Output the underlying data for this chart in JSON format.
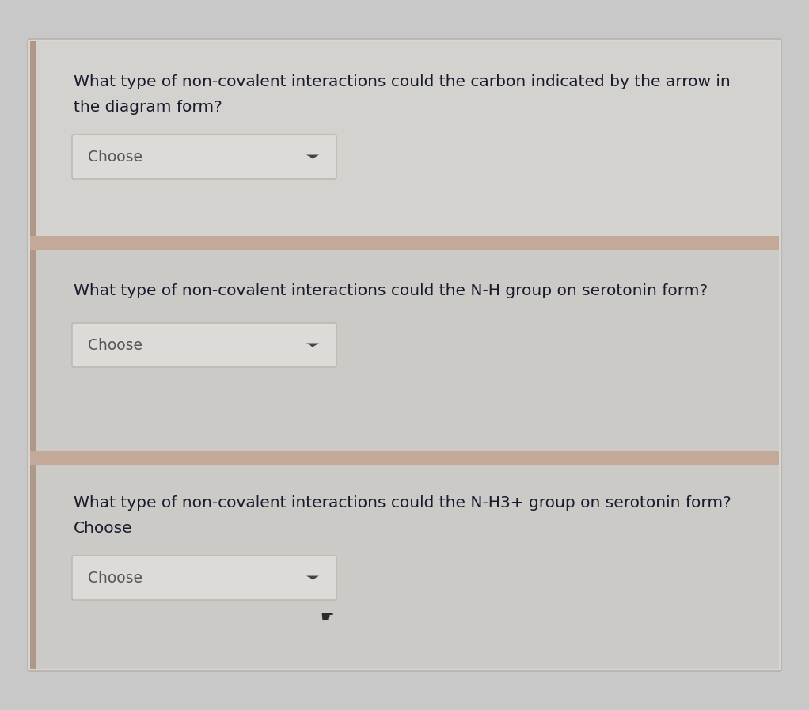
{
  "outer_bg": "#c8c8c8",
  "card_bg": "#d8d6d3",
  "section1_bg": "#d4d2cf",
  "section2_bg": "#cccac7",
  "section3_bg": "#cccac7",
  "separator_color": "#c4a898",
  "left_bar_color": "#b09888",
  "dropdown_bg": "#dddbd8",
  "dropdown_border": "#b8b4b0",
  "text_color": "#1a1a2e",
  "choose_color": "#555555",
  "arrow_color": "#444444",
  "q1_lines": [
    "What type of non-covalent interactions could the carbon indicated by the arrow in",
    "the diagram form?"
  ],
  "q2_lines": [
    "What type of non-covalent interactions could the N-H group on serotonin form?"
  ],
  "q3_lines": [
    "What type of non-covalent interactions could the N-H3+ group on serotonin form?",
    "Choose"
  ],
  "dropdown_label": "Choose",
  "font_size_q": 14.5,
  "font_size_dd": 13.5,
  "fig_width": 10.22,
  "fig_height": 8.97
}
